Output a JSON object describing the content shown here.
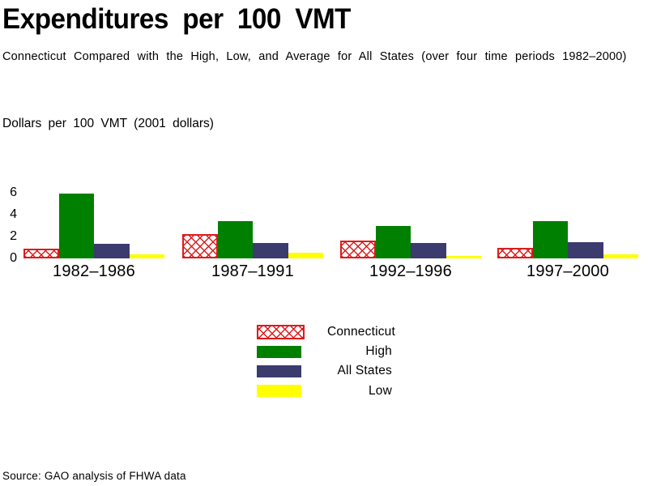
{
  "header": {
    "title": "Expenditures per 100 VMT",
    "subtitle": "Connecticut Compared with the High, Low, and Average for All States (over four time periods 1982–2000)"
  },
  "chart_data": {
    "type": "bar",
    "title": "Expenditures per 100 VMT",
    "subtitle": "Connecticut Compared with the High, Low, and Average for All States (over four time periods 1982–2000)",
    "axis_title": "Dollars per 100 VMT  (2001 dollars)",
    "categories": [
      "1982–1986",
      "1987–1991",
      "1992–1996",
      "1997–2000"
    ],
    "series": [
      {
        "name": "Connecticut",
        "color": "#de1b1b",
        "pattern": "crosshatch",
        "values": [
          0.9,
          2.2,
          1.6,
          1.0
        ]
      },
      {
        "name": "High",
        "color": "#008000",
        "pattern": "solid",
        "values": [
          5.9,
          3.4,
          3.0,
          3.4
        ]
      },
      {
        "name": "All States",
        "color": "#3b3b6e",
        "pattern": "solid",
        "values": [
          1.3,
          1.4,
          1.4,
          1.5
        ]
      },
      {
        "name": "Low",
        "color": "#ffff00",
        "pattern": "solid",
        "values": [
          0.4,
          0.5,
          0.2,
          0.4
        ]
      }
    ],
    "yticks": [
      6,
      4,
      2,
      0
    ],
    "ylim": [
      0,
      6
    ],
    "grid": false,
    "axis_lines": false,
    "legend_position": "bottom-center"
  },
  "source": "Source: GAO analysis of FHWA data"
}
